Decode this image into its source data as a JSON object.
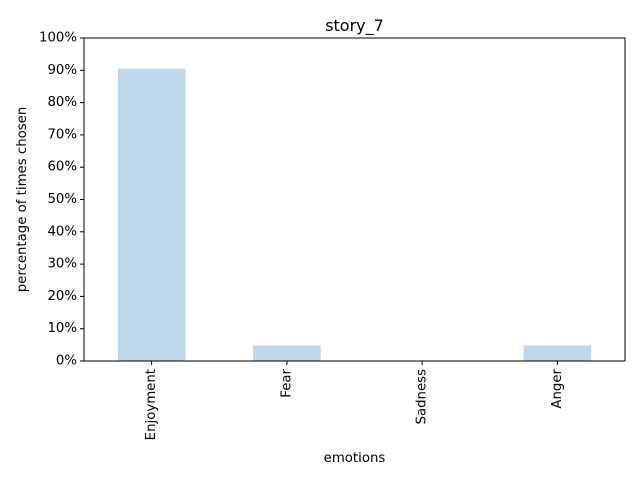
{
  "chart_data": {
    "type": "bar",
    "title": "story_7",
    "xlabel": "emotions",
    "ylabel": "percentage of times chosen",
    "categories": [
      "Enjoyment",
      "Fear",
      "Sadness",
      "Anger"
    ],
    "values": [
      0.905,
      0.048,
      0.0,
      0.048
    ],
    "ylim": [
      0,
      1
    ],
    "yticks": [
      0,
      0.1,
      0.2,
      0.3,
      0.4,
      0.5,
      0.6,
      0.7,
      0.8,
      0.9,
      1.0
    ],
    "ytick_labels": [
      "0%",
      "10%",
      "20%",
      "30%",
      "40%",
      "50%",
      "60%",
      "70%",
      "80%",
      "90%",
      "100%"
    ],
    "grid": false,
    "bar_color": "#bfd7ea"
  }
}
